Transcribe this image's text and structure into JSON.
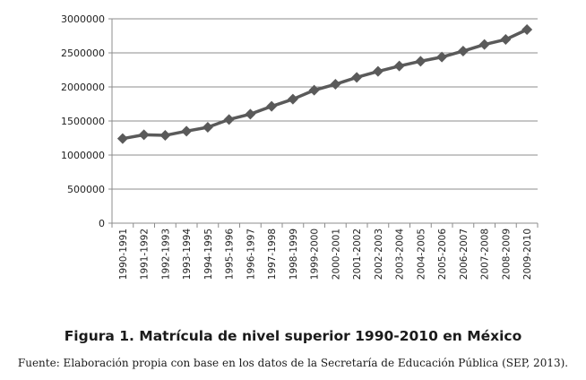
{
  "chart_data": {
    "type": "line",
    "title": "Figura 1. Matrícula de nivel superior 1990-2010 en México",
    "source": "Fuente: Elaboración propia con base en los datos de la Secretaría de Educación Pública (SEP, 2013).",
    "xlabel": "",
    "ylabel": "",
    "ylim": [
      0,
      3000000
    ],
    "yticks": [
      "0",
      "500000",
      "1000000",
      "1500000",
      "2000000",
      "2500000",
      "3000000"
    ],
    "grid": true,
    "legend": "none",
    "categories": [
      "1990-1991",
      "1991-1992",
      "1992-1993",
      "1993-1994",
      "1994-1995",
      "1995-1996",
      "1996-1997",
      "1997-1998",
      "1998-1999",
      "1999-2000",
      "2000-2001",
      "2001-2002",
      "2002-2003",
      "2003-2004",
      "2004-2005",
      "2005-2006",
      "2006-2007",
      "2007-2008",
      "2008-2009",
      "2009-2010"
    ],
    "series": [
      {
        "name": "Matrícula",
        "color": "#5a5a5a",
        "values": [
          1241000,
          1298000,
          1289000,
          1351000,
          1408000,
          1522000,
          1601000,
          1715000,
          1820000,
          1952000,
          2039000,
          2140000,
          2228000,
          2307000,
          2377000,
          2439000,
          2526000,
          2623000,
          2697000,
          2842000
        ]
      }
    ]
  }
}
